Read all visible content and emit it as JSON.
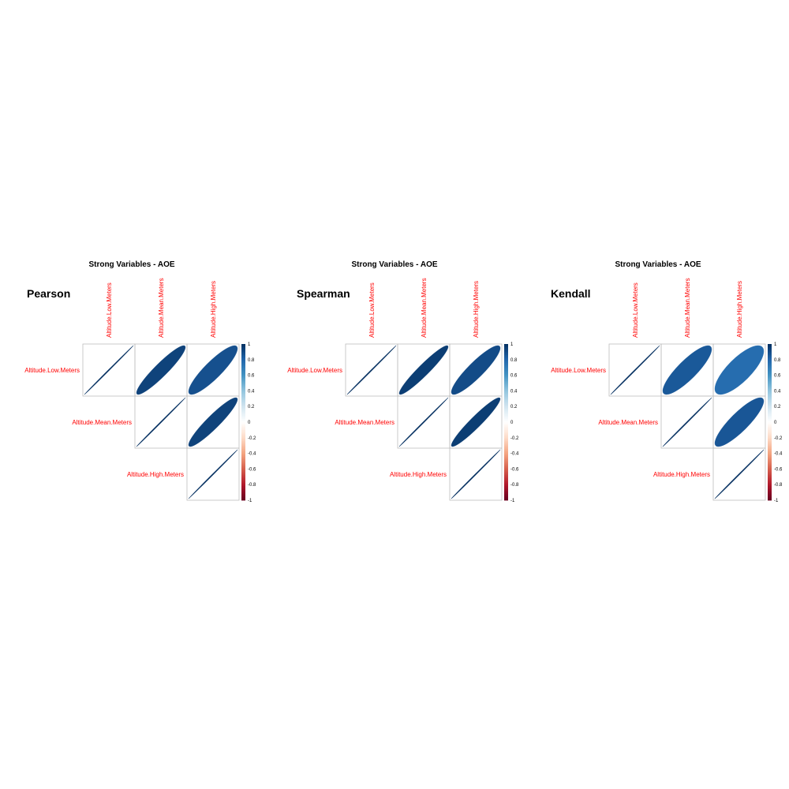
{
  "chart_data": [
    {
      "type": "heatmap",
      "method_label": "Pearson",
      "title": "Strong Variables - AOE",
      "variables": [
        "Altitude.Low.Meters",
        "Altitude.Mean.Meters",
        "Altitude.High.Meters"
      ],
      "matrix": [
        [
          1,
          0.93,
          0.88
        ],
        [
          0.93,
          1,
          0.93
        ],
        [
          0.88,
          0.93,
          1
        ]
      ],
      "colorbar_ticks": [
        "1",
        "0.8",
        "0.6",
        "0.4",
        "0.2",
        "0",
        "-0.2",
        "-0.4",
        "-0.6",
        "-0.8",
        "-1"
      ],
      "range": [
        -1,
        1
      ]
    },
    {
      "type": "heatmap",
      "method_label": "Spearman",
      "title": "Strong Variables - AOE",
      "variables": [
        "Altitude.Low.Meters",
        "Altitude.Mean.Meters",
        "Altitude.High.Meters"
      ],
      "matrix": [
        [
          1,
          0.95,
          0.9
        ],
        [
          0.95,
          1,
          0.95
        ],
        [
          0.9,
          0.95,
          1
        ]
      ],
      "colorbar_ticks": [
        "1",
        "0.8",
        "0.6",
        "0.4",
        "0.2",
        "0",
        "-0.2",
        "-0.4",
        "-0.6",
        "-0.8",
        "-1"
      ],
      "range": [
        -1,
        1
      ]
    },
    {
      "type": "heatmap",
      "method_label": "Kendall",
      "title": "Strong Variables - AOE",
      "variables": [
        "Altitude.Low.Meters",
        "Altitude.Mean.Meters",
        "Altitude.High.Meters"
      ],
      "matrix": [
        [
          1,
          0.85,
          0.77
        ],
        [
          0.85,
          1,
          0.86
        ],
        [
          0.77,
          0.86,
          1
        ]
      ],
      "colorbar_ticks": [
        "1",
        "0.8",
        "0.6",
        "0.4",
        "0.2",
        "0",
        "-0.2",
        "-0.4",
        "-0.6",
        "-0.8",
        "-1"
      ],
      "range": [
        -1,
        1
      ]
    }
  ],
  "colors": {
    "positive": "#053061",
    "negative": "#67001F",
    "midpoint": "#F7F7F7",
    "grid": "#BEBEBE",
    "labels": "#FF0000",
    "palette": [
      "#67001F",
      "#B2182B",
      "#D6604D",
      "#F4A582",
      "#FDDBC7",
      "#FFFFFF",
      "#D1E5F0",
      "#92C5DE",
      "#4393C3",
      "#2166AC",
      "#053061"
    ]
  }
}
